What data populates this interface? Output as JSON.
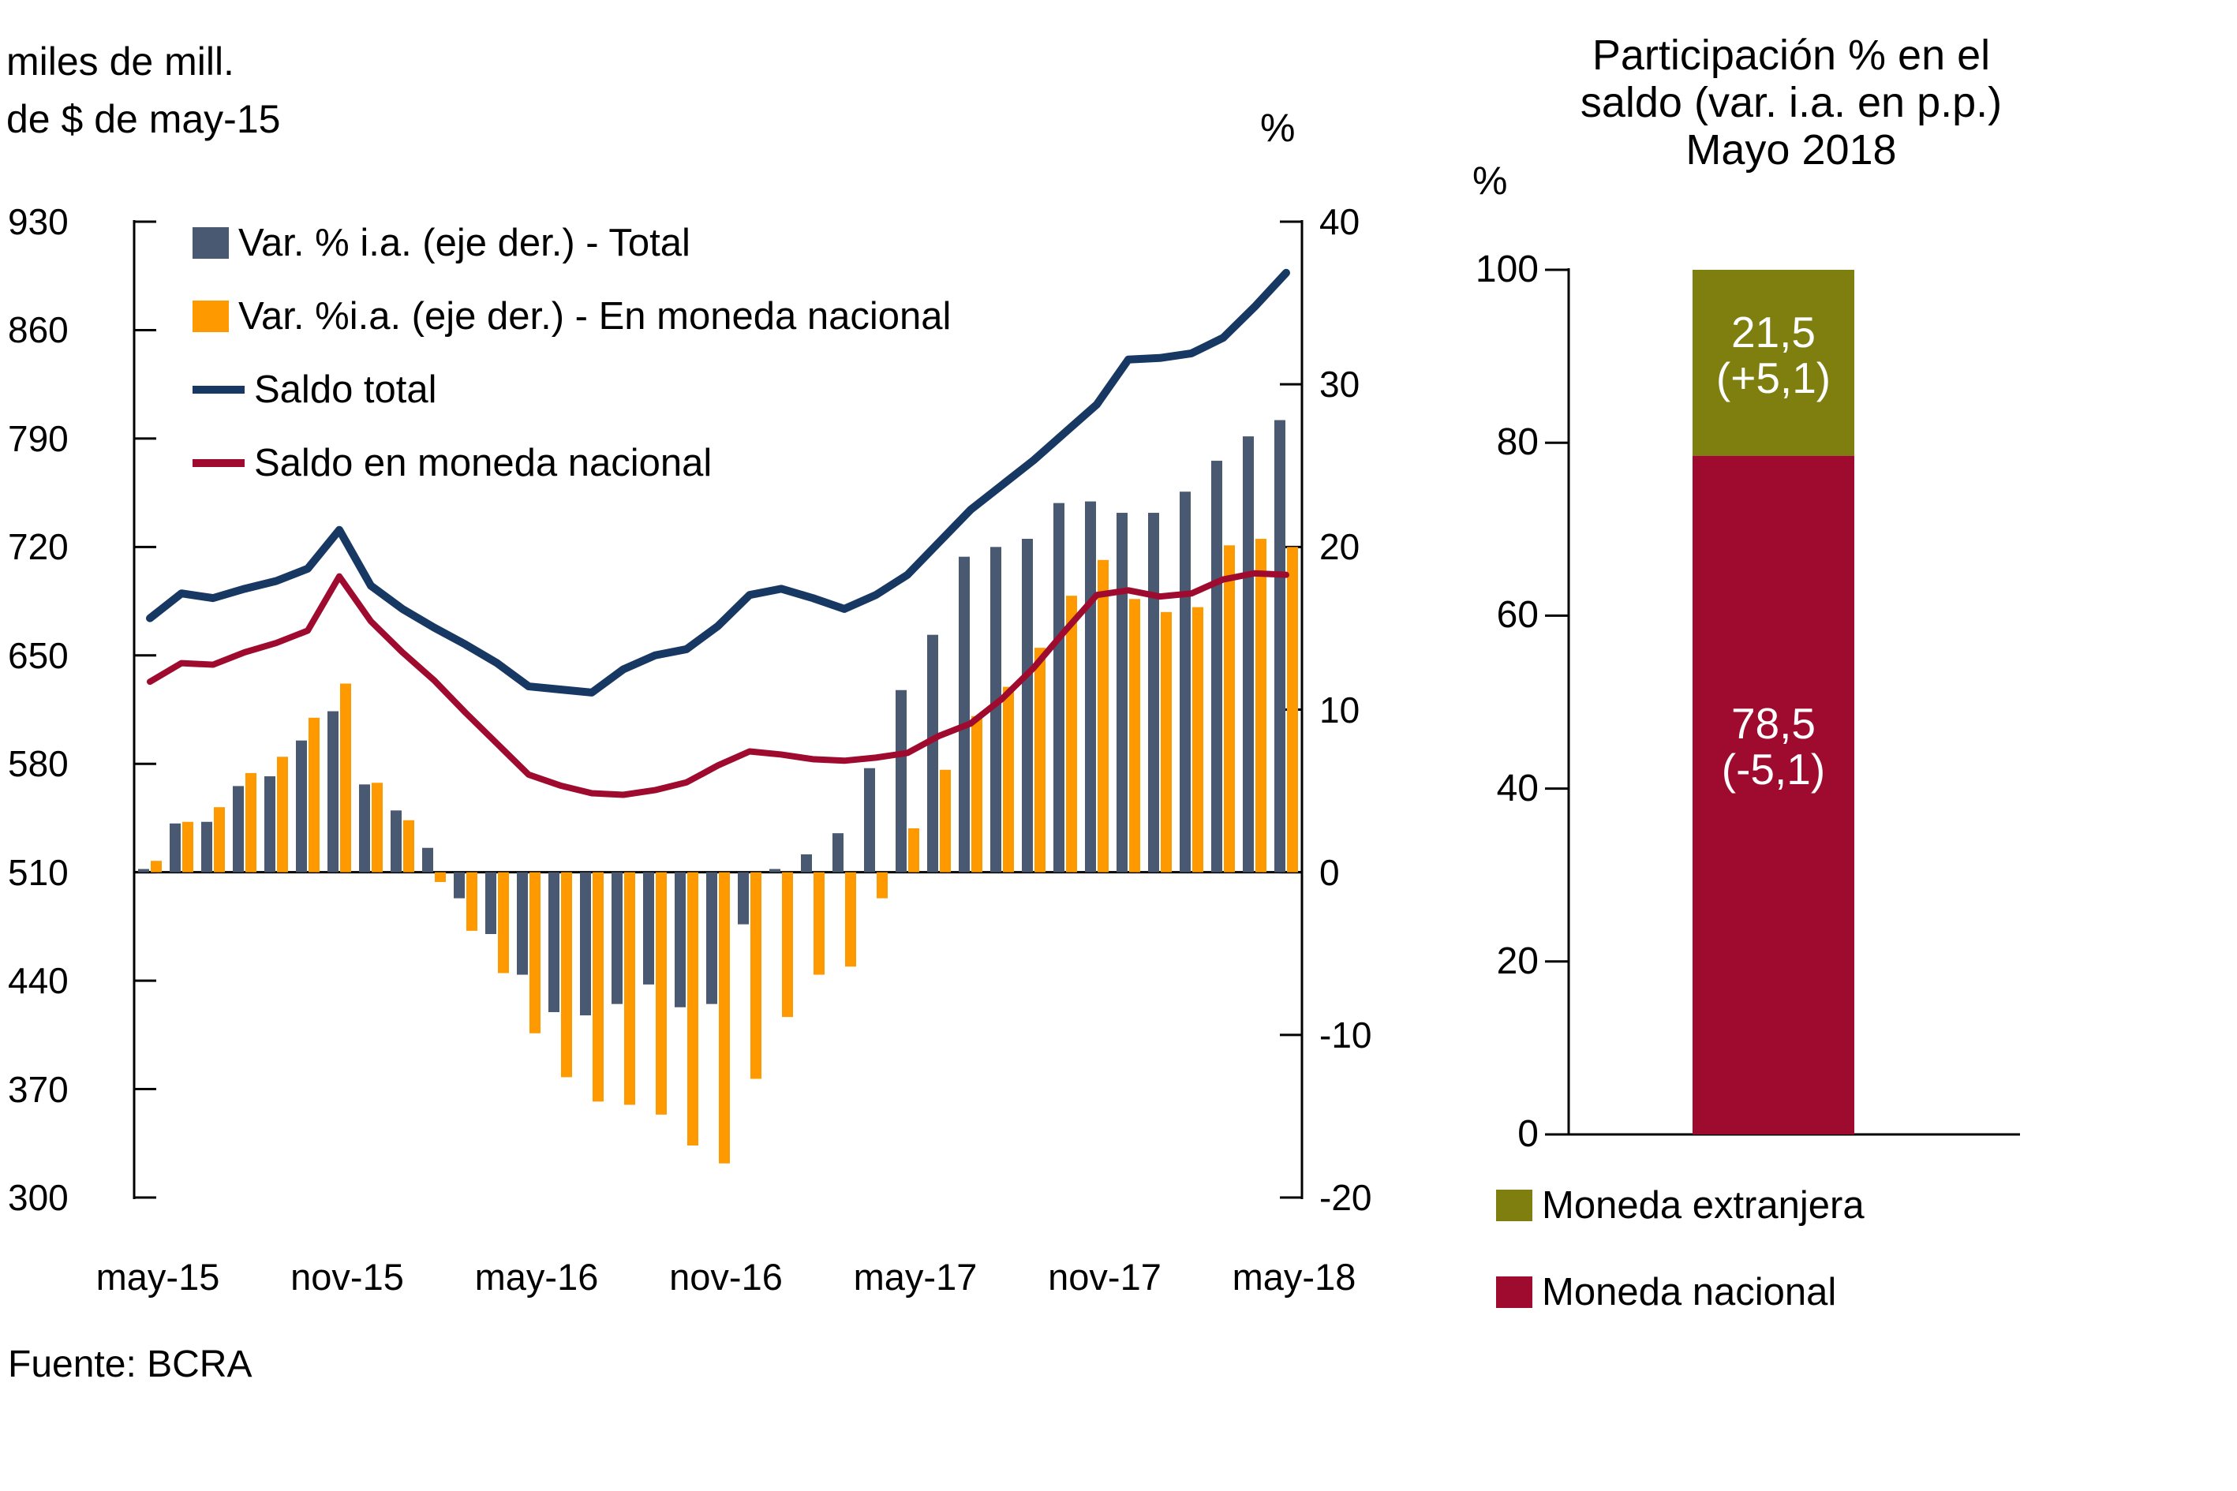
{
  "source": "Fuente: BCRA",
  "colors": {
    "bar_total": "#495972",
    "bar_mn": "#ff9900",
    "line_total": "#173862",
    "line_mn": "#9e0b2e",
    "olive": "#7f7f10",
    "wine": "#9e0b2e",
    "axis": "#000000",
    "background": "#ffffff",
    "bar_label_text": "#ffffff"
  },
  "chart_data": [
    {
      "id": "main",
      "type": "bar",
      "subtype": "monthly bars (right axis, %) + lines (left axis, stock)",
      "left_axis_title_lines": [
        "miles de mill.",
        "de $ de may-15"
      ],
      "right_axis_title": "%",
      "left_axis": {
        "min": 300,
        "max": 930,
        "ticks": [
          930,
          860,
          790,
          720,
          650,
          580,
          510,
          440,
          370,
          300
        ]
      },
      "right_axis": {
        "min": -20,
        "max": 40,
        "ticks": [
          40,
          30,
          20,
          10,
          0,
          -10,
          -20
        ]
      },
      "x": [
        "may-15",
        "jun-15",
        "jul-15",
        "ago-15",
        "sep-15",
        "oct-15",
        "nov-15",
        "dic-15",
        "ene-16",
        "feb-16",
        "mar-16",
        "abr-16",
        "may-16",
        "jun-16",
        "jul-16",
        "ago-16",
        "sep-16",
        "oct-16",
        "nov-16",
        "dic-16",
        "ene-17",
        "feb-17",
        "mar-17",
        "abr-17",
        "may-17",
        "jun-17",
        "jul-17",
        "ago-17",
        "sep-17",
        "oct-17",
        "nov-17",
        "dic-17",
        "ene-18",
        "feb-18",
        "mar-18",
        "abr-18",
        "may-18"
      ],
      "x_axis_labels": [
        "may-15",
        "nov-15",
        "may-16",
        "nov-16",
        "may-17",
        "nov-17",
        "may-18"
      ],
      "x_axis_label_positions": [
        0,
        6,
        12,
        18,
        24,
        30,
        36
      ],
      "grid": "off",
      "legend_position": "top-left inside plot",
      "series": [
        {
          "name": "Var. % i.a. (eje der.) - Total",
          "type": "bar",
          "axis": "right",
          "color": "#495972",
          "values": [
            0.2,
            3.0,
            3.1,
            5.3,
            5.9,
            8.1,
            9.9,
            5.4,
            3.8,
            1.5,
            -1.6,
            -3.8,
            -6.3,
            -8.6,
            -8.8,
            -8.1,
            -6.9,
            -8.3,
            -8.1,
            -3.2,
            0.2,
            1.1,
            2.4,
            6.4,
            11.2,
            14.6,
            19.4,
            20.0,
            20.5,
            22.7,
            22.8,
            22.1,
            22.1,
            23.4,
            25.3,
            26.8,
            27.8
          ]
        },
        {
          "name": "Var. %i.a. (eje der.) - En moneda nacional",
          "type": "bar",
          "axis": "right",
          "color": "#ff9900",
          "values": [
            0.7,
            3.1,
            4.0,
            6.1,
            7.1,
            9.5,
            11.6,
            5.5,
            3.2,
            -0.6,
            -3.6,
            -6.2,
            -9.9,
            -12.6,
            -14.1,
            -14.3,
            -14.9,
            -16.8,
            -17.9,
            -12.7,
            -8.9,
            -6.3,
            -5.8,
            -1.6,
            2.7,
            6.3,
            9.6,
            11.4,
            13.8,
            17.0,
            19.2,
            16.8,
            16.0,
            16.3,
            20.1,
            20.5,
            20.0
          ]
        },
        {
          "name": "Saldo total",
          "type": "line",
          "axis": "left",
          "color": "#173862",
          "values": [
            674,
            690,
            687,
            693,
            698,
            706,
            731,
            695,
            680,
            668,
            657,
            645,
            630,
            628,
            626,
            641,
            650,
            654,
            669,
            689,
            693,
            687,
            680,
            689,
            702,
            723,
            744,
            760,
            776,
            794,
            812,
            841,
            842,
            845,
            855,
            875,
            897
          ]
        },
        {
          "name": "Saldo en moneda nacional",
          "type": "line",
          "axis": "left",
          "color": "#9e0b2e",
          "values": [
            633,
            645,
            644,
            652,
            658,
            666,
            701,
            672,
            652,
            634,
            613,
            593,
            573,
            566,
            561,
            560,
            563,
            568,
            579,
            588,
            586,
            583,
            582,
            584,
            587,
            598,
            606,
            622,
            642,
            666,
            689,
            692,
            688,
            690,
            699,
            703,
            702
          ]
        }
      ]
    },
    {
      "id": "participation",
      "type": "bar",
      "subtype": "single stacked column",
      "title_lines": [
        "Participación % en el",
        "saldo (var. i.a. en p.p.)",
        "Mayo 2018"
      ],
      "axis_title": "%",
      "ylim": [
        0,
        100
      ],
      "y_ticks": [
        100,
        80,
        60,
        40,
        20,
        0
      ],
      "segments": [
        {
          "name": "Moneda extranjera",
          "value": 21.5,
          "value_label": "21,5",
          "change_label": "(+5,1)",
          "color": "#7f7f10"
        },
        {
          "name": "Moneda nacional",
          "value": 78.5,
          "value_label": "78,5",
          "change_label": "(-5,1)",
          "color": "#9e0b2e"
        }
      ],
      "legend": [
        "Moneda extranjera",
        "Moneda nacional"
      ]
    }
  ]
}
